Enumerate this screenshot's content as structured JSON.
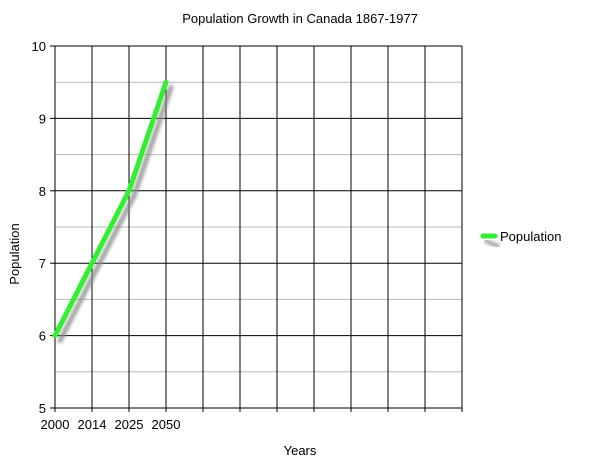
{
  "chart_data": {
    "type": "line",
    "title": "Population Growth in Canada 1867-1977",
    "xlabel": "Years",
    "ylabel": "Population",
    "categories": [
      "2000",
      "2014",
      "2025",
      "2050"
    ],
    "category_slots": 11,
    "series": [
      {
        "name": "Population",
        "values": [
          6,
          7,
          8,
          9.5
        ],
        "color": "#33ee33"
      }
    ],
    "ylim": [
      5,
      10
    ],
    "y_major_ticks": [
      5,
      6,
      7,
      8,
      9,
      10
    ],
    "y_minor_step": 0.5,
    "grid": true,
    "legend": "right"
  }
}
